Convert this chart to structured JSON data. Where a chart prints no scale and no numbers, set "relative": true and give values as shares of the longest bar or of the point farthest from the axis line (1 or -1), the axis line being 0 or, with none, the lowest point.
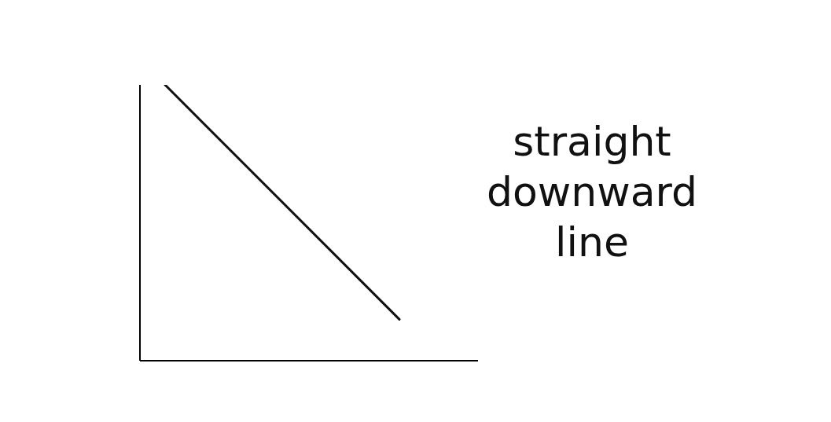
{
  "chart_data": {
    "type": "line",
    "relative": true,
    "categories": [
      null,
      null
    ],
    "series": [
      {
        "color": "#111111",
        "values": [
          1,
          0.15
        ]
      }
    ],
    "marker": "none",
    "line_style": "solid",
    "grid": false,
    "legend": false,
    "annotations": [
      "straight downward line"
    ]
  }
}
